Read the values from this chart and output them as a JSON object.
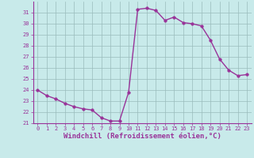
{
  "x": [
    0,
    1,
    2,
    3,
    4,
    5,
    6,
    7,
    8,
    9,
    10,
    11,
    12,
    13,
    14,
    15,
    16,
    17,
    18,
    19,
    20,
    21,
    22,
    23
  ],
  "y": [
    24,
    23.5,
    23.2,
    22.8,
    22.5,
    22.3,
    22.2,
    21.5,
    21.2,
    21.2,
    23.8,
    31.3,
    31.4,
    31.2,
    30.3,
    30.6,
    30.1,
    30.0,
    29.8,
    28.5,
    26.8,
    25.8,
    25.3,
    25.4
  ],
  "line_color": "#993399",
  "marker_color": "#993399",
  "bg_color": "#c8eaea",
  "grid_color": "#99bbbb",
  "spine_color": "#993399",
  "tick_color": "#993399",
  "xlabel": "Windchill (Refroidissement éolien,°C)",
  "ylim": [
    21,
    32
  ],
  "xlim": [
    -0.5,
    23.5
  ],
  "yticks": [
    21,
    22,
    23,
    24,
    25,
    26,
    27,
    28,
    29,
    30,
    31
  ],
  "xticks": [
    0,
    1,
    2,
    3,
    4,
    5,
    6,
    7,
    8,
    9,
    10,
    11,
    12,
    13,
    14,
    15,
    16,
    17,
    18,
    19,
    20,
    21,
    22,
    23
  ],
  "tick_fontsize": 5.0,
  "xlabel_fontsize": 6.5,
  "line_width": 1.0,
  "marker_size": 2.5
}
